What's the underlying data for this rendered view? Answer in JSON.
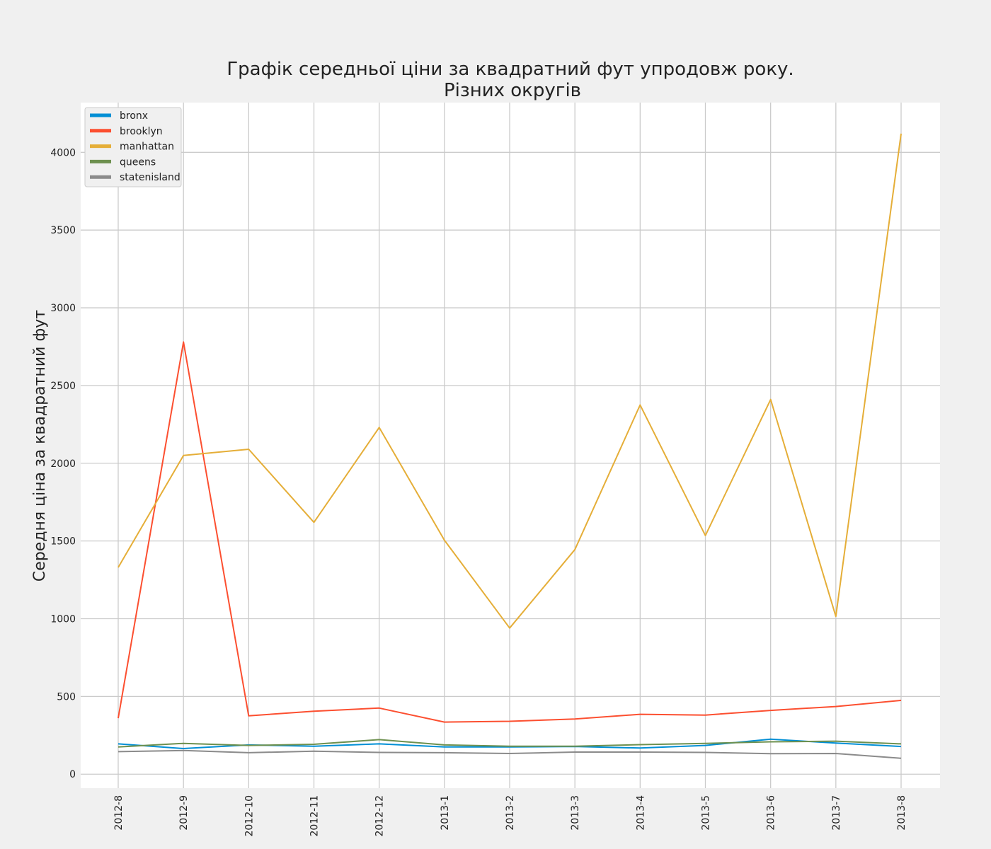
{
  "chart_data": {
    "type": "line",
    "title_lines": [
      "Графік середньої ціни за квадратний фут упродовж року.",
      "Різних округів"
    ],
    "xlabel": "",
    "ylabel": "Середня ціна за квадратний фут",
    "categories": [
      "2012-8",
      "2012-9",
      "2012-10",
      "2012-11",
      "2012-12",
      "2013-1",
      "2013-2",
      "2013-3",
      "2013-4",
      "2013-5",
      "2013-6",
      "2013-7",
      "2013-8"
    ],
    "y_ticks": [
      0,
      500,
      1000,
      1500,
      2000,
      2500,
      3000,
      3500,
      4000
    ],
    "ylim": [
      -90,
      4320
    ],
    "grid": true,
    "legend_position": "top-left",
    "series": [
      {
        "name": "bronx",
        "color": "#008fd5",
        "values": [
          195,
          165,
          188,
          180,
          195,
          175,
          175,
          178,
          168,
          185,
          225,
          200,
          178
        ]
      },
      {
        "name": "brooklyn",
        "color": "#fc4f30",
        "values": [
          360,
          2780,
          375,
          405,
          425,
          335,
          340,
          355,
          385,
          380,
          410,
          435,
          475
        ]
      },
      {
        "name": "manhattan",
        "color": "#e5ae38",
        "values": [
          1330,
          2050,
          2090,
          1620,
          2230,
          1505,
          940,
          1445,
          2375,
          1535,
          2410,
          1015,
          4120
        ]
      },
      {
        "name": "queens",
        "color": "#6d904f",
        "values": [
          175,
          198,
          185,
          192,
          222,
          188,
          180,
          180,
          190,
          198,
          208,
          212,
          195
        ]
      },
      {
        "name": "statenisland",
        "color": "#8b8b8b",
        "values": [
          145,
          152,
          138,
          148,
          140,
          138,
          133,
          142,
          142,
          140,
          132,
          133,
          102
        ]
      }
    ]
  }
}
